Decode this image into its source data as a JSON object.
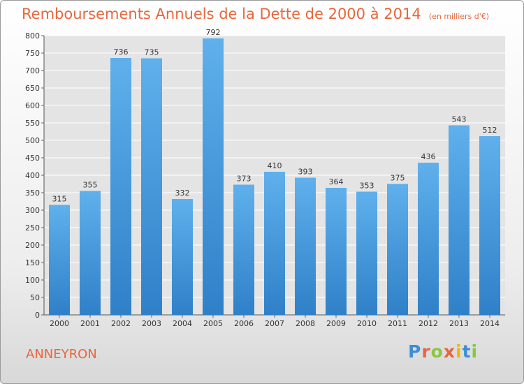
{
  "chart_data": {
    "type": "bar",
    "title": "Remboursements Annuels de la Dette de 2000 à 2014",
    "subtitle": "(en milliers d'€)",
    "categories": [
      "2000",
      "2001",
      "2002",
      "2003",
      "2004",
      "2005",
      "2006",
      "2007",
      "2008",
      "2009",
      "2010",
      "2011",
      "2012",
      "2013",
      "2014"
    ],
    "values": [
      315,
      355,
      736,
      735,
      332,
      792,
      373,
      410,
      393,
      364,
      353,
      375,
      436,
      543,
      512
    ],
    "ylim": [
      0,
      800
    ],
    "yticks": [
      0,
      50,
      100,
      150,
      200,
      250,
      300,
      350,
      400,
      450,
      500,
      550,
      600,
      650,
      700,
      750,
      800
    ],
    "grid": true,
    "legend": "none",
    "bar_color": "#4a9be0"
  },
  "footer": {
    "commune": "ANNEYRON",
    "logo_letters": [
      "P",
      "r",
      "o",
      "x",
      "i",
      "t",
      "i"
    ],
    "logo_colors": [
      "#3b8fd6",
      "#e8663c",
      "#8cc63f",
      "#e8663c",
      "#f2b705",
      "#3b8fd6",
      "#8cc63f"
    ]
  }
}
